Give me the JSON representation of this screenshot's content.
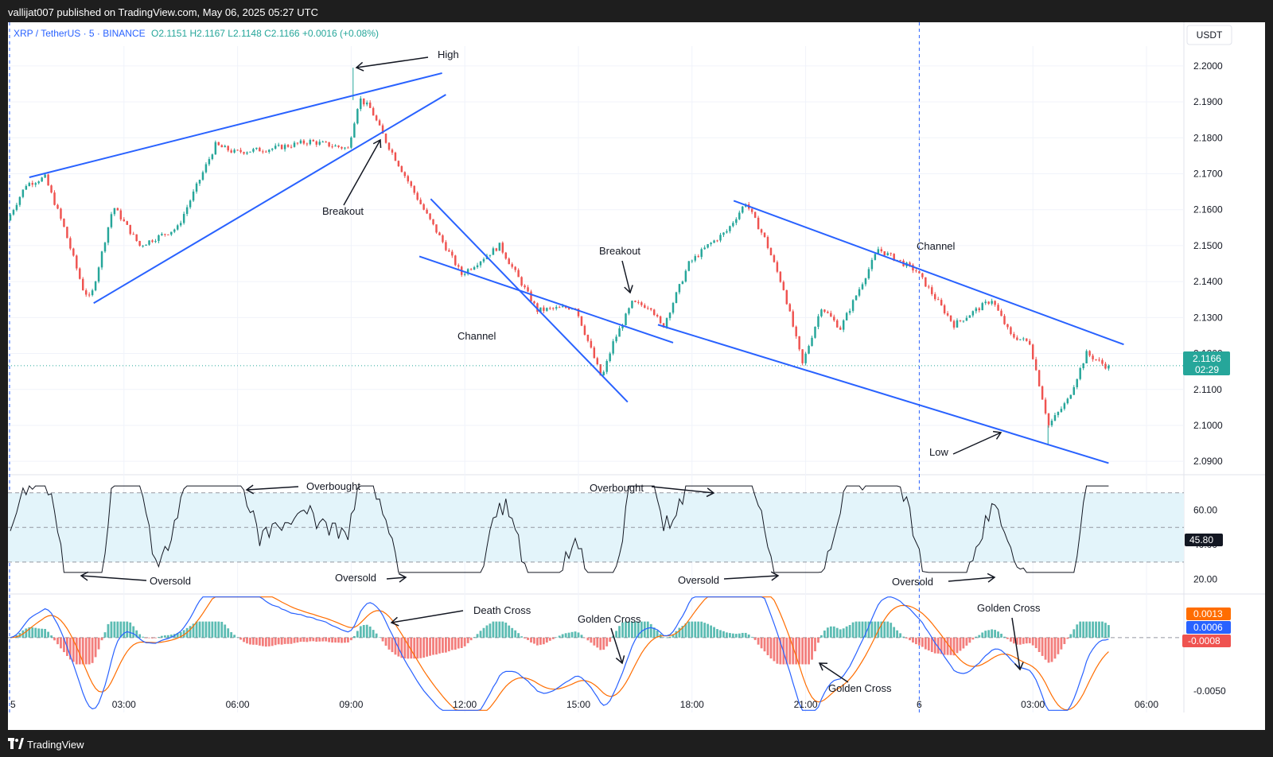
{
  "header": {
    "publisher": "vallijat007 published on TradingView.com, May 06, 2025 05:27 UTC"
  },
  "footer": {
    "brand": "TradingView"
  },
  "symbol_line": {
    "symbol": "XRP / TetherUS · 5 · BINANCE",
    "ohlc": "O2.1151  H2.1167  L2.1148  C2.1166  +0.0016 (+0.08%)"
  },
  "currency": "USDT",
  "colors": {
    "bull": "#26a69a",
    "bear": "#ef5350",
    "annotation_line": "#2962ff",
    "rsi_band": "#e3f4fa",
    "macd_line": "#2962ff",
    "signal_line": "#ff6d00"
  },
  "price_tag": {
    "value": "2.1166",
    "countdown": "02:29"
  },
  "rsi_tag": "45.80",
  "macd_tags": {
    "signal": "0.0013",
    "macd": "0.0006",
    "hist": "-0.0008"
  },
  "chart_data": [
    {
      "type": "candlestick",
      "ylim": [
        2.0865,
        2.2055
      ],
      "price_ticks": [
        "2.2000",
        "2.1900",
        "2.1800",
        "2.1700",
        "2.1600",
        "2.1500",
        "2.1400",
        "2.1300",
        "2.1200",
        "2.1100",
        "2.1000",
        "2.0900"
      ],
      "time_ticks": [
        "5",
        "03:00",
        "06:00",
        "09:00",
        "12:00",
        "15:00",
        "18:00",
        "21:00",
        "6",
        "03:00",
        "06:00"
      ],
      "session_break": "6",
      "anchor_path_hours": [
        0,
        0.5,
        1,
        1.5,
        2,
        2.2,
        2.8,
        3.5,
        4.5,
        5.5,
        6,
        7,
        8,
        9,
        9.3,
        9.6,
        10,
        11,
        12,
        13,
        14,
        15,
        15.7,
        16,
        16.5,
        17,
        17.3,
        18,
        18.5,
        19,
        19.5,
        20,
        20.5,
        21,
        21.5,
        22,
        23,
        24,
        25,
        26,
        26.5,
        27,
        27.5,
        28,
        28.5,
        29
      ],
      "anchor_path_prices": [
        2.157,
        2.167,
        2.169,
        2.155,
        2.138,
        2.135,
        2.161,
        2.15,
        2.155,
        2.178,
        2.176,
        2.177,
        2.179,
        2.177,
        2.191,
        2.188,
        2.179,
        2.16,
        2.142,
        2.15,
        2.132,
        2.133,
        2.113,
        2.123,
        2.134,
        2.133,
        2.127,
        2.145,
        2.15,
        2.154,
        2.162,
        2.152,
        2.138,
        2.117,
        2.133,
        2.127,
        2.149,
        2.143,
        2.128,
        2.135,
        2.125,
        2.123,
        2.1,
        2.107,
        2.12,
        2.1166
      ],
      "hours_per_day_axis": "5 = hour 0, 03:00 = hour 3, 6 = hour 24",
      "annotations": [
        "High",
        "Breakout",
        "Breakout",
        "Channel",
        "Channel",
        "Low"
      ]
    },
    {
      "type": "line",
      "name": "RSI",
      "ylim": [
        12,
        80
      ],
      "ticks": [
        "60.00",
        "40.00",
        "20.00"
      ],
      "band": [
        30,
        70
      ],
      "midline": 50,
      "annotations": [
        "Overbought",
        "Overbought",
        "Oversold",
        "Oversold",
        "Oversold",
        "Oversold"
      ]
    },
    {
      "type": "line",
      "name": "MACD",
      "ticks": [
        "-0.0050"
      ],
      "annotations": [
        "Death Cross",
        "Golden Cross",
        "Golden Cross",
        "Golden Cross"
      ]
    }
  ]
}
